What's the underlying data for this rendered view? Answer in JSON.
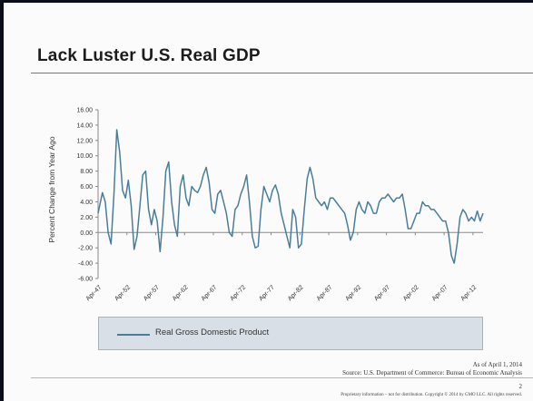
{
  "slide": {
    "title": "Lack Luster U.S. Real GDP",
    "as_of": "As of April 1, 2014",
    "source": "Source: U.S. Department of Commerce: Bureau of Economic Analysis",
    "page_number": "2",
    "footer": "Proprietary information – not for distribution. Copyright © 2014 by GMO LLC. All rights reserved."
  },
  "colors": {
    "line": "#4a7e98",
    "legend_bg": "#d8dfe6"
  },
  "chart_data": {
    "type": "line",
    "title": "",
    "xlabel": "",
    "ylabel": "Percent Change from Year Ago",
    "ylim": [
      -6,
      16
    ],
    "y_ticks": [
      "16.00",
      "14.00",
      "12.00",
      "10.00",
      "8.00",
      "6.00",
      "4.00",
      "2.00",
      "0.00",
      "-2.00",
      "-4.00",
      "-6.00"
    ],
    "x_tick_labels": [
      "Apr-47",
      "Apr-52",
      "Apr-57",
      "Apr-62",
      "Apr-67",
      "Apr-72",
      "Apr-77",
      "Apr-82",
      "Apr-87",
      "Apr-92",
      "Apr-97",
      "Apr-02",
      "Apr-07",
      "Apr-12"
    ],
    "x_range": [
      1947.25,
      2014.0
    ],
    "legend_position": "bottom",
    "grid": false,
    "series": [
      {
        "name": "Real Gross Domestic Product",
        "x": [
          1947.25,
          1948.0,
          1948.5,
          1949.0,
          1949.5,
          1950.0,
          1950.5,
          1951.0,
          1951.5,
          1952.0,
          1952.5,
          1953.0,
          1953.5,
          1954.0,
          1954.5,
          1955.0,
          1955.5,
          1956.0,
          1956.5,
          1957.0,
          1957.5,
          1958.0,
          1958.5,
          1959.0,
          1959.5,
          1960.0,
          1960.5,
          1961.0,
          1961.5,
          1962.0,
          1962.5,
          1963.0,
          1963.5,
          1964.0,
          1964.5,
          1965.0,
          1965.5,
          1966.0,
          1966.5,
          1967.0,
          1967.5,
          1968.0,
          1968.5,
          1969.0,
          1969.5,
          1970.0,
          1970.5,
          1971.0,
          1971.5,
          1972.0,
          1972.5,
          1973.0,
          1973.5,
          1974.0,
          1974.5,
          1975.0,
          1975.5,
          1976.0,
          1976.5,
          1977.0,
          1977.5,
          1978.0,
          1978.5,
          1979.0,
          1979.5,
          1980.0,
          1980.5,
          1981.0,
          1981.5,
          1982.0,
          1982.5,
          1983.0,
          1983.5,
          1984.0,
          1984.5,
          1985.0,
          1985.5,
          1986.0,
          1986.5,
          1987.0,
          1987.5,
          1988.0,
          1988.5,
          1989.0,
          1989.5,
          1990.0,
          1990.5,
          1991.0,
          1991.5,
          1992.0,
          1992.5,
          1993.0,
          1993.5,
          1994.0,
          1994.5,
          1995.0,
          1995.5,
          1996.0,
          1996.5,
          1997.0,
          1997.5,
          1998.0,
          1998.5,
          1999.0,
          1999.5,
          2000.0,
          2000.5,
          2001.0,
          2001.5,
          2002.0,
          2002.5,
          2003.0,
          2003.5,
          2004.0,
          2004.5,
          2005.0,
          2005.5,
          2006.0,
          2006.5,
          2007.0,
          2007.5,
          2008.0,
          2008.5,
          2009.0,
          2009.5,
          2010.0,
          2010.5,
          2011.0,
          2011.5,
          2012.0,
          2012.5,
          2013.0,
          2013.5,
          2014.0
        ],
        "y": [
          2.5,
          5.2,
          4.0,
          0.0,
          -1.5,
          5.0,
          13.4,
          10.5,
          5.5,
          4.5,
          6.8,
          3.5,
          -2.2,
          -0.5,
          3.5,
          7.5,
          8.0,
          3.0,
          1.0,
          3.0,
          1.5,
          -2.5,
          2.0,
          8.0,
          9.2,
          4.0,
          1.0,
          -0.5,
          6.0,
          7.5,
          4.5,
          3.5,
          6.0,
          5.5,
          5.2,
          6.0,
          7.5,
          8.5,
          6.5,
          3.0,
          2.5,
          5.0,
          5.5,
          4.0,
          2.5,
          0.0,
          -0.5,
          3.0,
          3.5,
          5.0,
          6.0,
          7.5,
          4.0,
          -0.5,
          -2.0,
          -1.8,
          3.0,
          6.0,
          5.0,
          4.0,
          5.5,
          6.2,
          5.0,
          2.5,
          1.0,
          -0.5,
          -2.0,
          3.0,
          2.0,
          -2.0,
          -1.5,
          3.0,
          7.0,
          8.5,
          7.0,
          4.5,
          4.0,
          3.5,
          4.0,
          3.0,
          4.5,
          4.5,
          4.0,
          3.5,
          3.0,
          2.5,
          1.0,
          -1.0,
          0.0,
          3.0,
          4.0,
          3.0,
          2.5,
          4.0,
          3.5,
          2.5,
          2.5,
          4.0,
          4.5,
          4.5,
          5.0,
          4.5,
          4.0,
          4.5,
          4.5,
          5.0,
          3.0,
          0.5,
          0.5,
          1.5,
          2.5,
          2.5,
          4.0,
          3.5,
          3.5,
          3.0,
          3.0,
          2.5,
          2.0,
          1.5,
          1.5,
          0.0,
          -3.0,
          -4.0,
          -1.5,
          2.0,
          3.0,
          2.5,
          1.5,
          2.0,
          1.5,
          2.8,
          1.5,
          2.5
        ]
      }
    ]
  }
}
